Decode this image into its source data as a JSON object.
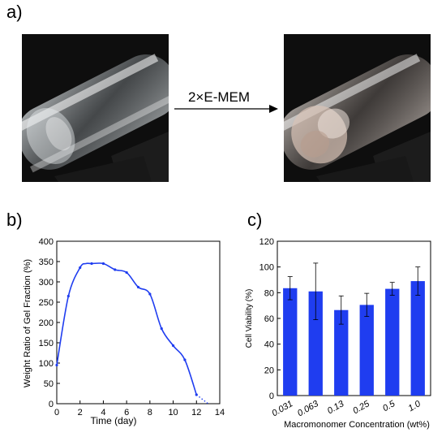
{
  "panel_labels": {
    "a": "a)",
    "b": "b)",
    "c": "c)"
  },
  "arrow_label": "2×E-MEM",
  "colors": {
    "line": "#1f3df0",
    "bar": "#1f3df0",
    "photo_bg": "#0e0e0e"
  },
  "chart_data": [
    {
      "type": "line",
      "xlabel": "Time (day)",
      "ylabel": "Weight Ratio of Gel Fraction (%)",
      "xlim": [
        0,
        14
      ],
      "ylim": [
        0,
        400
      ],
      "xticks": [
        0,
        2,
        4,
        6,
        8,
        10,
        12,
        14
      ],
      "yticks": [
        0,
        50,
        100,
        150,
        200,
        250,
        300,
        350,
        400
      ],
      "series": [
        {
          "x": [
            0,
            1,
            2,
            2.5,
            3,
            4,
            5,
            6,
            7,
            8,
            9,
            10,
            11,
            12
          ],
          "y": [
            95,
            265,
            335,
            345,
            345,
            345,
            330,
            323,
            287,
            270,
            185,
            143,
            108,
            22
          ]
        }
      ],
      "extrapolation": {
        "x": [
          12,
          13
        ],
        "y": [
          22,
          0
        ],
        "style": "dotted"
      }
    },
    {
      "type": "bar",
      "xlabel": "Macromonomer Concentration (wt%)",
      "ylabel": "Cell Viability (%)",
      "ylim": [
        0,
        120
      ],
      "yticks": [
        0,
        20,
        40,
        60,
        80,
        100,
        120
      ],
      "categories": [
        "0.031",
        "0.063",
        "0.13",
        "0.25",
        "0.5",
        "1.0"
      ],
      "values": [
        83.5,
        81,
        66.5,
        70.5,
        83,
        89
      ],
      "errors": [
        9,
        22,
        11,
        9,
        5,
        11
      ]
    }
  ]
}
